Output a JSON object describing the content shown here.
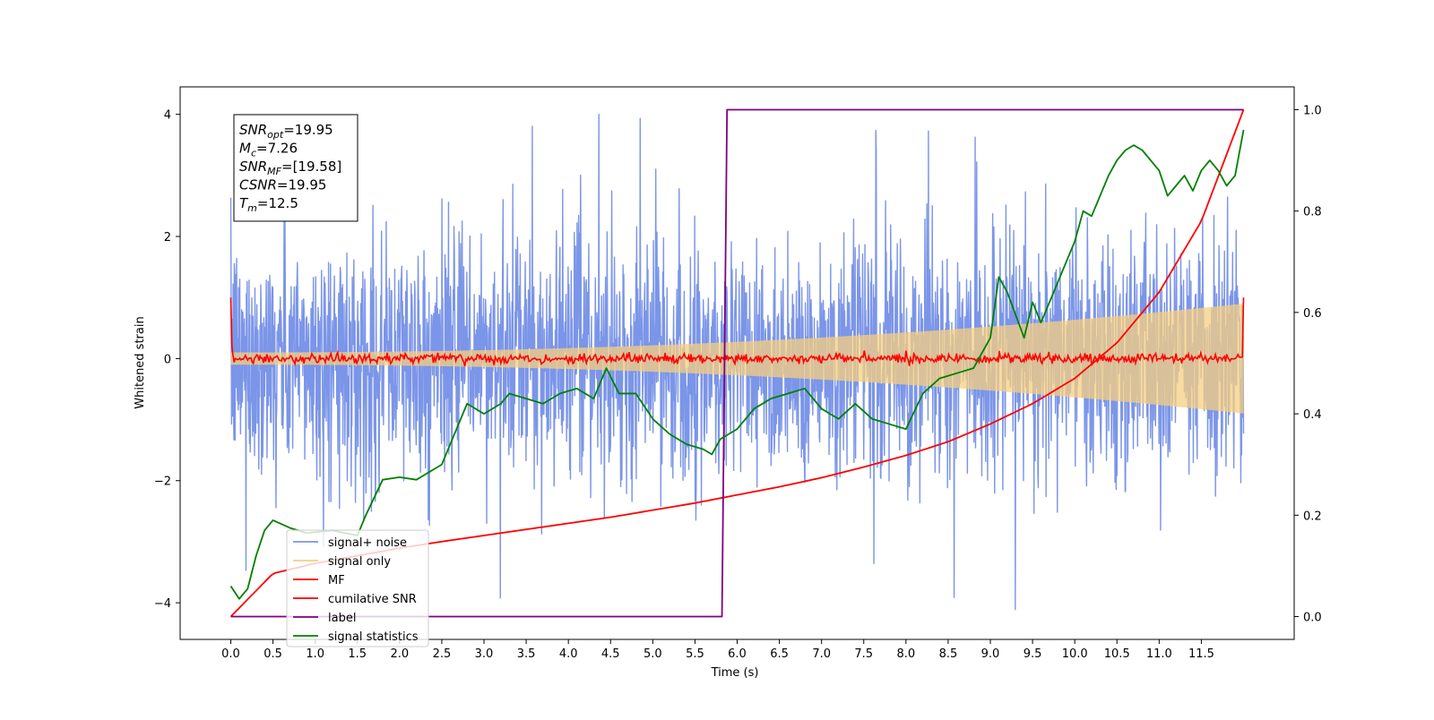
{
  "chart_data": {
    "type": "line",
    "xlabel": "Time (s)",
    "ylabel": "Whitened strain",
    "xlim": [
      -0.6,
      12.6
    ],
    "ylim_left": [
      -4.6,
      4.45
    ],
    "ylim_right": [
      -0.045,
      1.045
    ],
    "x_ticks": [
      0.0,
      0.5,
      1.0,
      1.5,
      2.0,
      2.5,
      3.0,
      3.5,
      4.0,
      4.5,
      5.0,
      5.5,
      6.0,
      6.5,
      7.0,
      7.5,
      8.0,
      8.5,
      9.0,
      9.5,
      10.0,
      10.5,
      11.0,
      11.5
    ],
    "x_tick_labels": [
      "0.0",
      "0.5",
      "1.0",
      "1.5",
      "2.0",
      "2.5",
      "3.0",
      "3.5",
      "4.0",
      "4.5",
      "5.0",
      "5.5",
      "6.0",
      "6.5",
      "7.0",
      "7.5",
      "8.0",
      "8.5",
      "9.0",
      "9.5",
      "10.0",
      "10.5",
      "11.0",
      "11.5"
    ],
    "y_left_ticks": [
      -4,
      -2,
      0,
      2,
      4
    ],
    "y_left_tick_labels": [
      "−4",
      "−2",
      "0",
      "2",
      "4"
    ],
    "y_right_ticks": [
      0.0,
      0.2,
      0.4,
      0.6,
      0.8,
      1.0
    ],
    "y_right_tick_labels": [
      "0.0",
      "0.2",
      "0.4",
      "0.6",
      "0.8",
      "1.0"
    ],
    "grid": false,
    "legend_position": "lower-left",
    "annotation": {
      "lines": [
        {
          "sym": "SNR",
          "sub": "opt",
          "val": "=19.95"
        },
        {
          "sym": "M",
          "sub": "c",
          "val": "=7.26"
        },
        {
          "sym": "SNR",
          "sub": "MF",
          "val": "=[19.58]"
        },
        {
          "sym": "CSNR",
          "sub": "",
          "val": "=19.95"
        },
        {
          "sym": "T",
          "sub": "m",
          "val": "=12.5"
        }
      ]
    },
    "series": [
      {
        "name": "signal+ noise",
        "color": "#7b95e8",
        "axis": "left",
        "t_range": [
          0,
          12
        ],
        "typical_amplitude": 2.2,
        "peak_max": 4.0,
        "peak_min": -4.15
      },
      {
        "name": "signal only",
        "color": "#f5cf80",
        "axis": "left",
        "t_range": [
          0,
          12
        ],
        "envelope_start": 0.1,
        "envelope_end": 0.9
      },
      {
        "name": "MF",
        "color": "#ff0000",
        "axis": "left",
        "t_range": [
          0,
          12
        ],
        "start_value": 1.0,
        "end_value": 1.0,
        "baseline": 0.0
      },
      {
        "name": "cumilative SNR",
        "color": "#ff0000",
        "axis": "right",
        "x": [
          0,
          0.5,
          1,
          1.5,
          2,
          2.5,
          3,
          3.5,
          4,
          4.5,
          5,
          5.5,
          6,
          6.5,
          7,
          7.5,
          8,
          8.5,
          9,
          9.5,
          10,
          10.5,
          11,
          11.5,
          12
        ],
        "y": [
          0.0,
          0.085,
          0.105,
          0.12,
          0.135,
          0.148,
          0.16,
          0.172,
          0.184,
          0.196,
          0.21,
          0.224,
          0.24,
          0.256,
          0.274,
          0.295,
          0.318,
          0.345,
          0.38,
          0.42,
          0.47,
          0.54,
          0.64,
          0.78,
          1.0
        ]
      },
      {
        "name": "label",
        "color": "#800080",
        "axis": "right",
        "x": [
          0,
          5.82,
          5.88,
          12
        ],
        "y": [
          0.0,
          0.0,
          1.0,
          1.0
        ]
      },
      {
        "name": "signal statistics",
        "color": "#008000",
        "axis": "right",
        "x": [
          0,
          0.1,
          0.2,
          0.3,
          0.4,
          0.5,
          0.7,
          0.9,
          1.2,
          1.5,
          1.6,
          1.8,
          2.0,
          2.2,
          2.4,
          2.5,
          2.6,
          2.8,
          3.0,
          3.2,
          3.3,
          3.5,
          3.7,
          3.9,
          4.1,
          4.3,
          4.45,
          4.6,
          4.8,
          5.0,
          5.2,
          5.4,
          5.6,
          5.7,
          5.8,
          6.0,
          6.2,
          6.4,
          6.6,
          6.8,
          7.0,
          7.2,
          7.4,
          7.6,
          7.8,
          8.0,
          8.2,
          8.4,
          8.6,
          8.8,
          9.0,
          9.1,
          9.2,
          9.4,
          9.5,
          9.6,
          9.8,
          10.0,
          10.1,
          10.2,
          10.3,
          10.4,
          10.5,
          10.6,
          10.7,
          10.8,
          11.0,
          11.1,
          11.2,
          11.3,
          11.4,
          11.5,
          11.6,
          11.7,
          11.8,
          11.9,
          12.0
        ],
        "y": [
          0.06,
          0.035,
          0.055,
          0.12,
          0.17,
          0.19,
          0.175,
          0.165,
          0.17,
          0.16,
          0.2,
          0.27,
          0.275,
          0.27,
          0.29,
          0.3,
          0.34,
          0.42,
          0.4,
          0.42,
          0.44,
          0.43,
          0.42,
          0.44,
          0.45,
          0.43,
          0.49,
          0.44,
          0.44,
          0.39,
          0.36,
          0.34,
          0.33,
          0.32,
          0.35,
          0.37,
          0.41,
          0.43,
          0.44,
          0.45,
          0.41,
          0.39,
          0.42,
          0.39,
          0.38,
          0.37,
          0.44,
          0.47,
          0.48,
          0.49,
          0.55,
          0.67,
          0.64,
          0.55,
          0.62,
          0.58,
          0.66,
          0.74,
          0.8,
          0.79,
          0.83,
          0.87,
          0.9,
          0.92,
          0.93,
          0.92,
          0.88,
          0.83,
          0.85,
          0.87,
          0.84,
          0.88,
          0.9,
          0.88,
          0.85,
          0.87,
          0.96
        ]
      }
    ]
  }
}
